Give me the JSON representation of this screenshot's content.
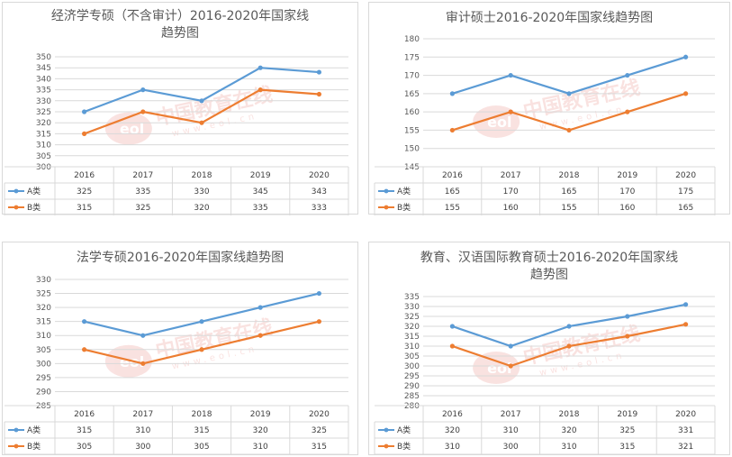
{
  "chart_data": [
    {
      "type": "line",
      "title_lines": [
        "经济学专硕（不含审计）2016-2020年国家线",
        "趋势图"
      ],
      "categories": [
        "2016",
        "2017",
        "2018",
        "2019",
        "2020"
      ],
      "series": [
        {
          "name": "A类",
          "color": "#5b9bd5",
          "values": [
            325,
            335,
            330,
            345,
            343
          ]
        },
        {
          "name": "B类",
          "color": "#ed7d31",
          "values": [
            315,
            325,
            320,
            335,
            333
          ]
        }
      ],
      "ylim": [
        300,
        350
      ],
      "ystep": 5,
      "grid": true,
      "legend": "data-table"
    },
    {
      "type": "line",
      "title_lines": [
        "审计硕士2016-2020年国家线趋势图"
      ],
      "categories": [
        "2016",
        "2017",
        "2018",
        "2019",
        "2020"
      ],
      "series": [
        {
          "name": "A类",
          "color": "#5b9bd5",
          "values": [
            165,
            170,
            165,
            170,
            175
          ]
        },
        {
          "name": "B类",
          "color": "#ed7d31",
          "values": [
            155,
            160,
            155,
            160,
            165
          ]
        }
      ],
      "ylim": [
        145,
        180
      ],
      "ystep": 5,
      "grid": true,
      "legend": "data-table"
    },
    {
      "type": "line",
      "title_lines": [
        "法学专硕2016-2020年国家线趋势图"
      ],
      "categories": [
        "2016",
        "2017",
        "2018",
        "2019",
        "2020"
      ],
      "series": [
        {
          "name": "A类",
          "color": "#5b9bd5",
          "values": [
            315,
            310,
            315,
            320,
            325
          ]
        },
        {
          "name": "B类",
          "color": "#ed7d31",
          "values": [
            305,
            300,
            305,
            310,
            315
          ]
        }
      ],
      "ylim": [
        285,
        330
      ],
      "ystep": 5,
      "grid": true,
      "legend": "data-table"
    },
    {
      "type": "line",
      "title_lines": [
        "教育、汉语国际教育硕士2016-2020年国家线",
        "趋势图"
      ],
      "categories": [
        "2016",
        "2017",
        "2018",
        "2019",
        "2020"
      ],
      "series": [
        {
          "name": "A类",
          "color": "#5b9bd5",
          "values": [
            320,
            310,
            320,
            325,
            331
          ]
        },
        {
          "name": "B类",
          "color": "#ed7d31",
          "values": [
            310,
            300,
            310,
            315,
            321
          ]
        }
      ],
      "ylim": [
        280,
        335
      ],
      "ystep": 5,
      "grid": true,
      "legend": "data-table"
    }
  ],
  "watermark": {
    "text": "中国教育在线",
    "sub": "www.eol.cn",
    "logo": "eol"
  }
}
